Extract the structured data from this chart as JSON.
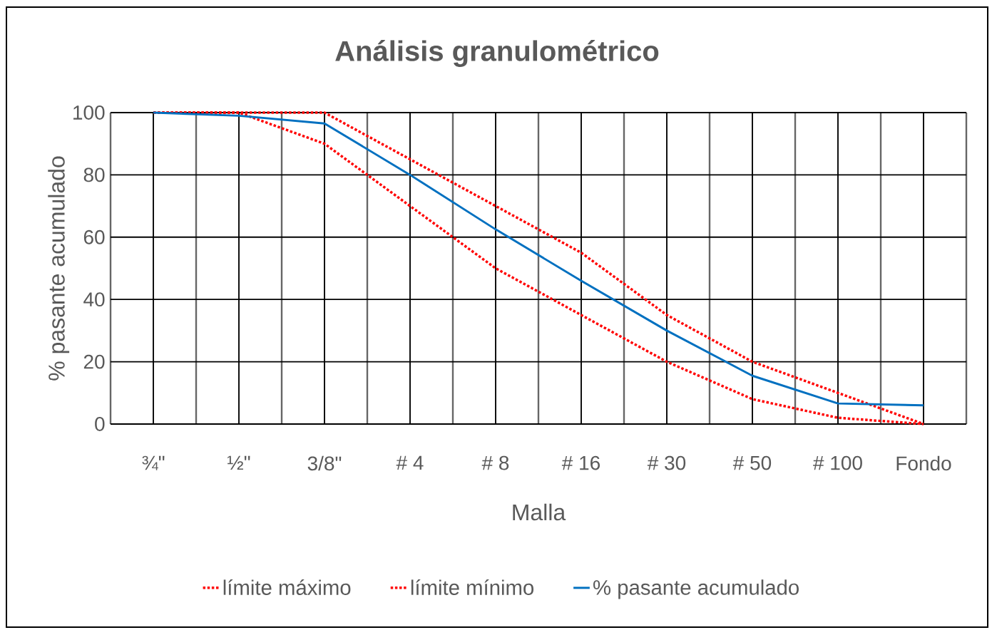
{
  "chart_data": {
    "type": "line",
    "title": "Análisis granulométrico",
    "xlabel": "Malla",
    "ylabel": "% pasante acumulado",
    "categories": [
      "¾\"",
      "½\"",
      "3/8\"",
      "# 4",
      "# 8",
      "# 16",
      "# 30",
      "# 50",
      "# 100",
      "Fondo"
    ],
    "series": [
      {
        "name": "límite máximo",
        "color": "#ff0000",
        "line_style": "dotted",
        "values": [
          100,
          100,
          100,
          85,
          70,
          55,
          35,
          20,
          10,
          0
        ]
      },
      {
        "name": "límite mínimo",
        "color": "#ff0000",
        "line_style": "dotted",
        "values": [
          100,
          100,
          90,
          70,
          50,
          35,
          20,
          8,
          2,
          0
        ]
      },
      {
        "name": "% pasante acumulado",
        "color": "#0070c0",
        "line_style": "solid",
        "values": [
          100,
          99,
          96.5,
          80,
          62.5,
          46,
          30,
          15.5,
          6.6,
          6
        ]
      }
    ],
    "ylim": [
      0,
      100
    ],
    "yticks": [
      0,
      20,
      40,
      60,
      80,
      100
    ],
    "grid": true,
    "legend": "bottom"
  }
}
